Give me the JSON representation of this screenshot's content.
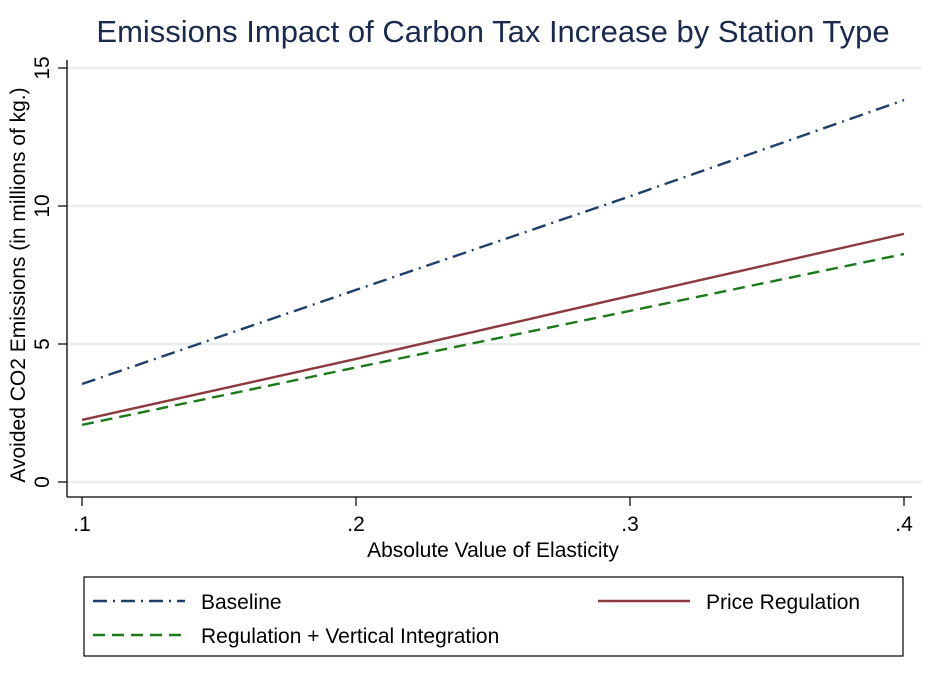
{
  "chart_data": {
    "type": "line",
    "title": "Emissions Impact of Carbon Tax Increase by Station Type",
    "xlabel": "Absolute Value of Elasticity",
    "ylabel": "Avoided CO2 Emissions (in millions of kg.)",
    "x": [
      0.1,
      0.2,
      0.3,
      0.4
    ],
    "xlim": [
      0.1,
      0.4
    ],
    "ylim": [
      0,
      15
    ],
    "xticks": [
      0.1,
      0.2,
      0.3,
      0.4
    ],
    "xtick_labels": [
      ".1",
      ".2",
      ".3",
      ".4"
    ],
    "yticks": [
      0,
      5,
      10,
      15
    ],
    "ytick_labels": [
      "0",
      "5",
      "10",
      "15"
    ],
    "grid": true,
    "legend_position": "bottom",
    "series": [
      {
        "name": "Baseline",
        "color": "#1f3f6b",
        "style": "dashdot",
        "values": [
          3.55,
          6.96,
          10.35,
          13.84
        ]
      },
      {
        "name": "Price Regulation",
        "color": "#8b3a3e",
        "style": "solid",
        "values": [
          2.25,
          4.46,
          6.74,
          8.99
        ]
      },
      {
        "name": "Regulation + Vertical Integration",
        "color": "#1a7a1a",
        "style": "dashed",
        "values": [
          2.07,
          4.15,
          6.2,
          8.26
        ]
      }
    ]
  }
}
